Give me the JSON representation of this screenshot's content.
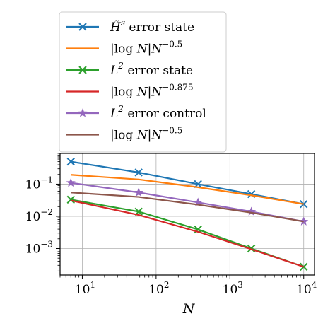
{
  "chart_data": {
    "type": "line",
    "xscale": "log",
    "yscale": "log",
    "xlim": [
      5,
      14000
    ],
    "ylim": [
      0.00015,
      0.9
    ],
    "grid": true,
    "xlabel": "N",
    "ylabel": "",
    "legend_position": "top (above plot)",
    "x_ticks": [
      {
        "value": 10,
        "base": "10",
        "exp": "1"
      },
      {
        "value": 100,
        "base": "10",
        "exp": "2"
      },
      {
        "value": 1000,
        "base": "10",
        "exp": "3"
      },
      {
        "value": 10000,
        "base": "10",
        "exp": "4"
      }
    ],
    "y_ticks": [
      {
        "value": 0.1,
        "base": "10",
        "exp": "−1"
      },
      {
        "value": 0.01,
        "base": "10",
        "exp": "−2"
      },
      {
        "value": 0.001,
        "base": "10",
        "exp": "−3"
      }
    ],
    "series": [
      {
        "name_parts": [
          "H̃",
          "s",
          " error state"
        ],
        "color": "#1f77b4",
        "marker": "x",
        "x": [
          7,
          58,
          370,
          1950,
          10000
        ],
        "y": [
          0.5,
          0.23,
          0.1,
          0.049,
          0.024
        ]
      },
      {
        "name_parts": [
          "|log ",
          "N",
          "|",
          "N",
          "−0.5"
        ],
        "color": "#ff7f0e",
        "marker": "none",
        "x": [
          7,
          58,
          370,
          1950,
          10000
        ],
        "y": [
          0.195,
          0.14,
          0.08,
          0.045,
          0.024
        ]
      },
      {
        "name_parts": [
          "L",
          "2",
          " error state"
        ],
        "color": "#2ca02c",
        "marker": "x",
        "x": [
          7,
          58,
          370,
          1950,
          10000
        ],
        "y": [
          0.033,
          0.014,
          0.0039,
          0.001,
          0.00027
        ]
      },
      {
        "name_parts": [
          "|log ",
          "N",
          "|",
          "N",
          "−0.875"
        ],
        "color": "#d62728",
        "marker": "none",
        "x": [
          7,
          58,
          370,
          1950,
          10000
        ],
        "y": [
          0.031,
          0.011,
          0.0033,
          0.00095,
          0.00027
        ]
      },
      {
        "name_parts": [
          "L",
          "2",
          " error control"
        ],
        "color": "#9467bd",
        "marker": "star",
        "x": [
          7,
          58,
          370,
          1950,
          10000
        ],
        "y": [
          0.11,
          0.055,
          0.027,
          0.014,
          0.0069
        ]
      },
      {
        "name_parts": [
          "|log ",
          "N",
          "|",
          "N",
          "−0.5"
        ],
        "color": "#8c564b",
        "marker": "none",
        "x": [
          7,
          58,
          370,
          1950,
          10000
        ],
        "y": [
          0.055,
          0.04,
          0.023,
          0.013,
          0.0069
        ]
      }
    ]
  }
}
